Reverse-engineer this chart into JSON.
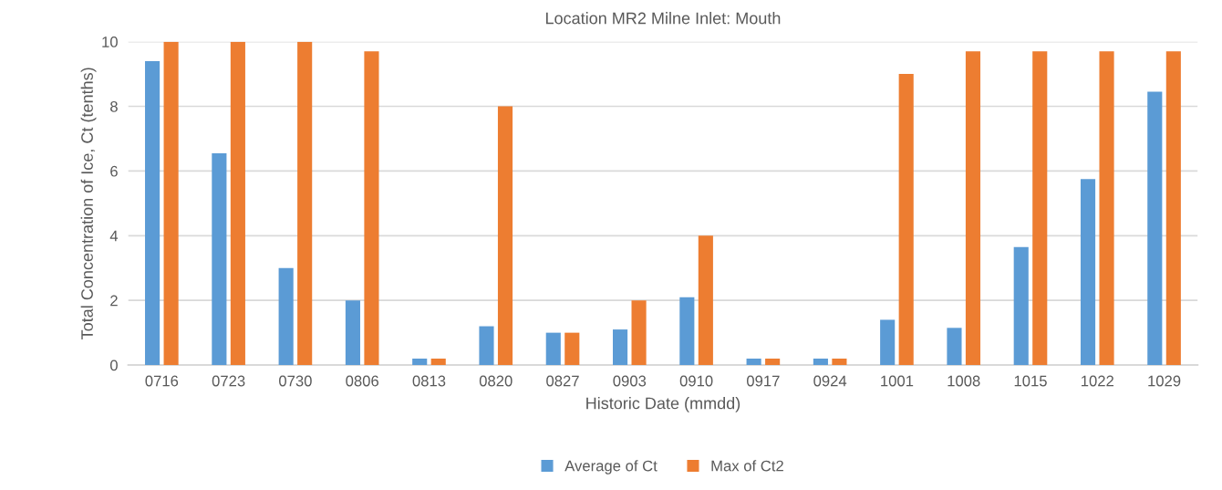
{
  "chart_data": {
    "type": "bar",
    "title": "Location MR2 Milne Inlet: Mouth",
    "xlabel": "Historic Date (mmdd)",
    "ylabel": "Total Concentration of Ice, Ct (tenths)",
    "categories": [
      "0716",
      "0723",
      "0730",
      "0806",
      "0813",
      "0820",
      "0827",
      "0903",
      "0910",
      "0917",
      "0924",
      "1001",
      "1008",
      "1015",
      "1022",
      "1029"
    ],
    "series": [
      {
        "name": "Average of Ct",
        "color": "#5b9bd5",
        "values": [
          9.4,
          6.55,
          3.0,
          2.0,
          0.2,
          1.2,
          1.0,
          1.1,
          2.1,
          0.2,
          0.2,
          1.4,
          1.15,
          3.65,
          5.75,
          8.45
        ]
      },
      {
        "name": "Max of Ct2",
        "color": "#ed7d31",
        "values": [
          10,
          10,
          10,
          9.7,
          0.2,
          8.0,
          1.0,
          2.0,
          4.0,
          0.2,
          0.2,
          9.0,
          9.7,
          9.7,
          9.7,
          9.7
        ]
      }
    ],
    "ylim": [
      0,
      10
    ],
    "yticks": [
      0,
      2,
      4,
      6,
      8,
      10
    ],
    "grid": "y",
    "legend": "bottom"
  }
}
